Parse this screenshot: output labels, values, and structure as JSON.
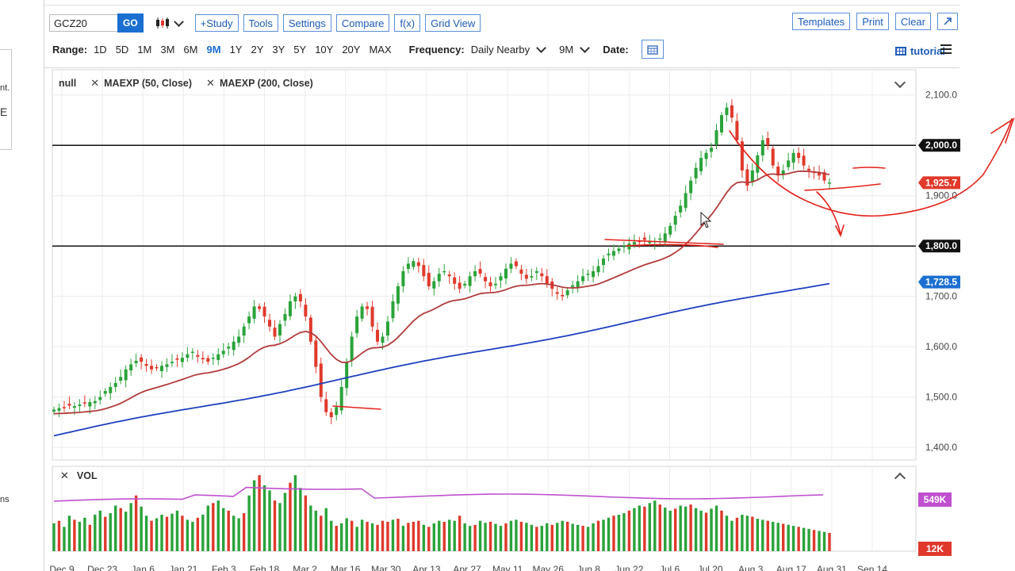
{
  "sidebar": {
    "line1": "nt.",
    "line2": "E",
    "line3": "ns"
  },
  "toolbar": {
    "symbol_value": "GCZ20",
    "go_label": "GO",
    "buttons": [
      "+Study",
      "Tools",
      "Settings",
      "Compare",
      "f(x)",
      "Grid View"
    ],
    "right_buttons": [
      "Templates",
      "Print",
      "Clear"
    ]
  },
  "rangebar": {
    "range_label": "Range:",
    "ranges": [
      "1D",
      "5D",
      "1M",
      "3M",
      "6M",
      "9M",
      "1Y",
      "2Y",
      "3Y",
      "5Y",
      "10Y",
      "20Y",
      "MAX"
    ],
    "active_range": "9M",
    "frequency_label": "Frequency:",
    "frequency_value": "Daily Nearby",
    "period_value": "9M",
    "date_label": "Date:",
    "tutorial_label": "tutorial"
  },
  "legend": {
    "items": [
      "null",
      "MAEXP (50, Close)",
      "MAEXP (200, Close)"
    ]
  },
  "volume_panel": {
    "label": "VOL"
  },
  "colors": {
    "accent": "#1a6fd1",
    "up": "#2aa33a",
    "down": "#e0392b",
    "ma50": "#b23b3b",
    "ma200": "#1f3fc0",
    "vol_ma": "#c050d0",
    "annotation": "#e3221b"
  },
  "chart_data": {
    "type": "candlestick",
    "price_axis": {
      "ticks": [
        "2,100.0",
        "2,000.0",
        "1,900.0",
        "1,800.0",
        "1,700.0",
        "1,600.0",
        "1,500.0",
        "1,400.0"
      ],
      "ylim": [
        1375,
        2150
      ]
    },
    "x_tick_labels": [
      "Dec 9",
      "Dec 23",
      "Jan 6",
      "Jan 21",
      "Feb 3",
      "Feb 18",
      "Mar 2",
      "Mar 16",
      "Mar 30",
      "Apr 13",
      "Apr 27",
      "May 11",
      "May 26",
      "Jun 8",
      "Jun 22",
      "Jul 6",
      "Jul 20",
      "Aug 3",
      "Aug 17",
      "Aug 31",
      "Sep 14"
    ],
    "price_labels": [
      {
        "text": "2,000.0",
        "value": 2000,
        "bg": "#111111"
      },
      {
        "text": "1,925.7",
        "value": 1925.7,
        "bg": "#e0392b"
      },
      {
        "text": "1,800.0",
        "value": 1800,
        "bg": "#111111"
      },
      {
        "text": "1,728.5",
        "value": 1728.5,
        "bg": "#1a6fd1"
      }
    ],
    "horizontal_lines": [
      2000,
      1800
    ],
    "volume_axis": {
      "labels": [
        {
          "text": "549K",
          "bg": "#c050d0"
        },
        {
          "text": "12K",
          "bg": "#e0392b"
        }
      ]
    },
    "price_series": [
      1475,
      1478,
      1480,
      1483,
      1482,
      1485,
      1488,
      1490,
      1492,
      1500,
      1512,
      1520,
      1528,
      1540,
      1555,
      1565,
      1572,
      1570,
      1562,
      1555,
      1558,
      1562,
      1565,
      1570,
      1574,
      1578,
      1585,
      1590,
      1580,
      1575,
      1570,
      1578,
      1585,
      1592,
      1600,
      1610,
      1620,
      1640,
      1660,
      1680,
      1675,
      1660,
      1640,
      1620,
      1645,
      1665,
      1690,
      1700,
      1690,
      1660,
      1610,
      1560,
      1500,
      1470,
      1460,
      1480,
      1520,
      1570,
      1620,
      1660,
      1680,
      1675,
      1640,
      1610,
      1620,
      1650,
      1690,
      1720,
      1750,
      1765,
      1770,
      1760,
      1740,
      1720,
      1730,
      1745,
      1750,
      1740,
      1725,
      1715,
      1725,
      1740,
      1750,
      1745,
      1730,
      1720,
      1725,
      1740,
      1755,
      1765,
      1760,
      1745,
      1735,
      1740,
      1750,
      1740,
      1725,
      1715,
      1705,
      1700,
      1712,
      1722,
      1730,
      1740,
      1745,
      1750,
      1760,
      1775,
      1785,
      1790,
      1795,
      1800,
      1805,
      1808,
      1810,
      1812,
      1808,
      1810,
      1815,
      1825,
      1840,
      1860,
      1880,
      1905,
      1930,
      1955,
      1975,
      1985,
      1995,
      2030,
      2060,
      2075,
      2055,
      2010,
      1950,
      1920,
      1950,
      1980,
      2010,
      2000,
      1960,
      1940,
      1950,
      1970,
      1985,
      1975,
      1960,
      1950,
      1945,
      1940,
      1930,
      1926
    ],
    "volume_series": [
      55,
      60,
      48,
      70,
      62,
      58,
      66,
      52,
      72,
      80,
      68,
      75,
      90,
      85,
      78,
      95,
      110,
      88,
      70,
      60,
      65,
      72,
      68,
      74,
      80,
      70,
      62,
      58,
      66,
      72,
      90,
      95,
      100,
      85,
      80,
      70,
      65,
      75,
      110,
      140,
      150,
      130,
      120,
      100,
      95,
      115,
      135,
      150,
      125,
      110,
      90,
      80,
      70,
      85,
      60,
      50,
      55,
      65,
      60,
      48,
      62,
      58,
      55,
      52,
      60,
      58,
      62,
      64,
      50,
      56,
      58,
      60,
      52,
      48,
      55,
      60,
      58,
      62,
      60,
      70,
      55,
      50,
      52,
      60,
      56,
      58,
      54,
      50,
      55,
      60,
      62,
      58,
      56,
      52,
      48,
      50,
      55,
      52,
      56,
      60,
      58,
      54,
      52,
      50,
      48,
      55,
      60,
      62,
      66,
      70,
      72,
      75,
      80,
      85,
      90,
      88,
      95,
      100,
      92,
      86,
      80,
      84,
      90,
      88,
      92,
      85,
      80,
      76,
      84,
      90,
      80,
      70,
      60,
      66,
      72,
      70,
      68,
      64,
      62,
      60,
      58,
      56,
      54,
      52,
      50,
      48,
      46,
      44,
      42,
      40,
      38,
      36
    ]
  }
}
